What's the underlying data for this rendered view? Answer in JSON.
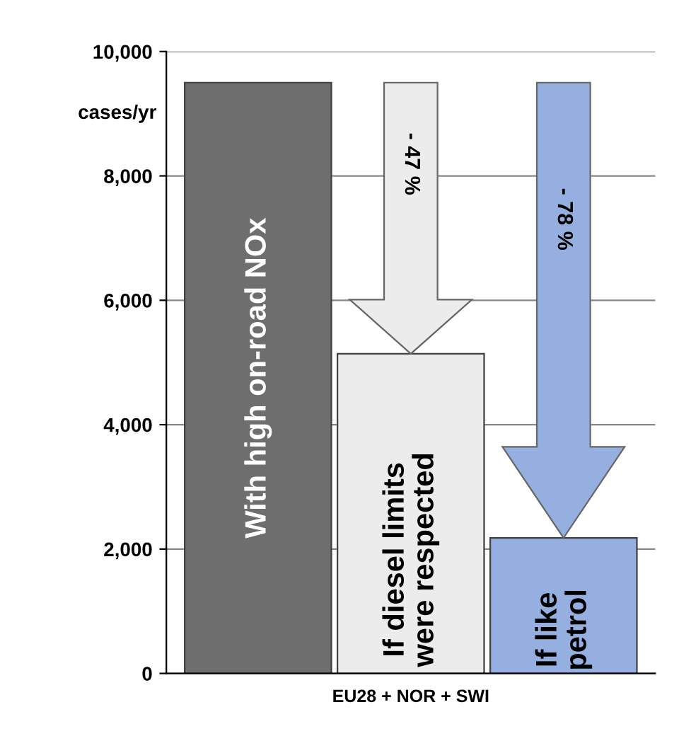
{
  "chart_data": {
    "type": "bar",
    "xlabel": "EU28 + NOR + SWI",
    "ylabel": "cases/yr",
    "categories": [
      "With high on-road NOx",
      "If diesel limits\nwere respected",
      "If like\npetrol"
    ],
    "values": [
      9500,
      5140,
      2180
    ],
    "colors": [
      "#6e6e6e",
      "#ececec",
      "#95b0e0"
    ],
    "ylim": [
      0,
      10000
    ],
    "yticks": [
      {
        "value": 0,
        "label": "0"
      },
      {
        "value": 2000,
        "label": "2,000"
      },
      {
        "value": 4000,
        "label": "4,000"
      },
      {
        "value": 6000,
        "label": "6,000"
      },
      {
        "value": 8000,
        "label": "8,000"
      },
      {
        "value": 10000,
        "label": "10,000"
      }
    ],
    "grid": "y",
    "annotations": [
      "- 47 %",
      "- 78 %"
    ]
  }
}
